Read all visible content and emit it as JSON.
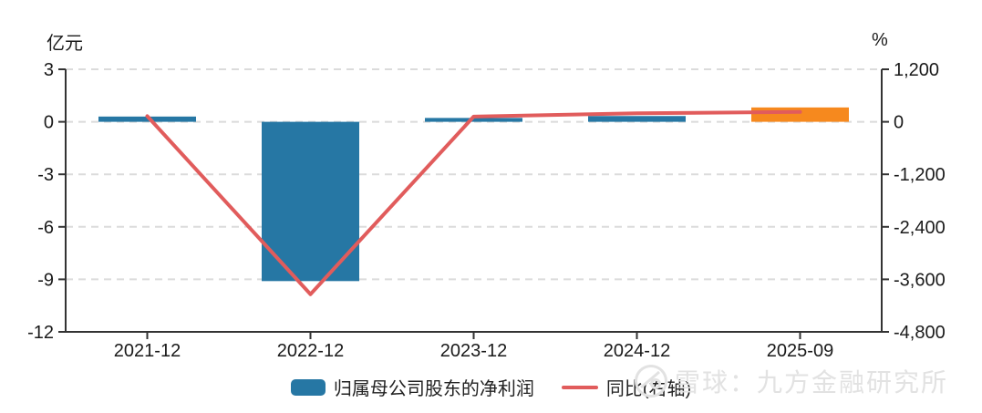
{
  "legend": [
    {
      "label": "归属母公司股东的净利润",
      "type": "bar",
      "color": "#2677A4"
    },
    {
      "label": "同比(右轴)",
      "type": "line",
      "color": "#E15C5C"
    }
  ],
  "watermark": {
    "text": "雪球：九方金融研究所"
  },
  "colors": {
    "bar_blue": "#2677A4",
    "bar_orange": "#F6891E",
    "line_red": "#E15C5C",
    "grid": "#DBDBDB",
    "axis": "#333333",
    "tick_text": "#1A1A1A",
    "watermark_gray": "#E2E2E2"
  },
  "chart_data": {
    "type": "bar",
    "title": "",
    "categories": [
      "2021-12",
      "2022-12",
      "2023-12",
      "2024-12",
      "2025-09"
    ],
    "series": [
      {
        "name": "归属母公司股东的净利润",
        "type": "bar",
        "axis": "left",
        "unit": "亿元",
        "values": [
          0.3,
          -9.1,
          0.22,
          0.33,
          0.82
        ],
        "bar_colors": [
          "#2677A4",
          "#2677A4",
          "#2677A4",
          "#2677A4",
          "#F6891E"
        ]
      },
      {
        "name": "同比(右轴)",
        "type": "line",
        "axis": "right",
        "unit": "%",
        "values": [
          130,
          -3940,
          120,
          195,
          225
        ],
        "color": "#E15C5C"
      }
    ],
    "left_axis": {
      "title": "亿元",
      "min": -12,
      "max": 3,
      "tick_values": [
        3,
        0,
        -3,
        -6,
        -9,
        -12
      ],
      "tick_labels": [
        "3",
        "0",
        "-3",
        "-6",
        "-9",
        "-12"
      ]
    },
    "right_axis": {
      "title": "%",
      "min": -4800,
      "max": 1200,
      "tick_values": [
        1200,
        0,
        -1200,
        -2400,
        -3600,
        -4800
      ],
      "tick_labels": [
        "1,200",
        "0",
        "-1,200",
        "-2,400",
        "-3,600",
        "-4,800"
      ]
    },
    "grid": "horizontal dashed",
    "legend_position": "bottom center"
  }
}
